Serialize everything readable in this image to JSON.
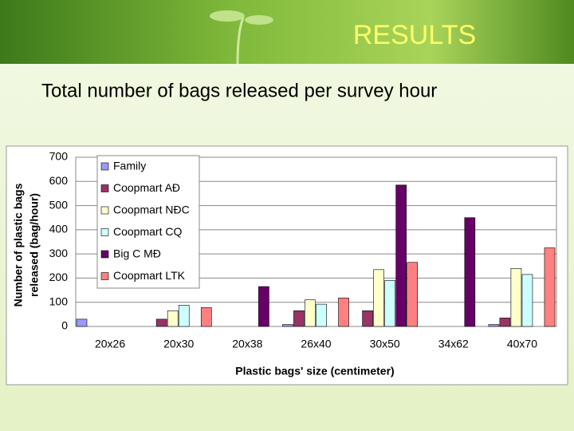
{
  "slide": {
    "title": "RESULTS",
    "subtitle": "Total number of bags released per survey hour"
  },
  "chart_data": {
    "type": "bar",
    "ylabel": [
      "Number of plastic bags",
      "released (bag/hour)"
    ],
    "xlabel": "Plastic bags' size (centimeter)",
    "categories": [
      "20x26",
      "20x30",
      "20x38",
      "26x40",
      "30x50",
      "34x62",
      "40x70"
    ],
    "series": [
      {
        "name": "Family",
        "color": "#9999ff",
        "values": [
          30,
          0,
          0,
          8,
          0,
          0,
          8
        ]
      },
      {
        "name": "Coopmart AĐ",
        "color": "#993366",
        "values": [
          0,
          30,
          0,
          65,
          65,
          0,
          35
        ]
      },
      {
        "name": "Coopmart NĐC",
        "color": "#ffffcc",
        "values": [
          0,
          65,
          0,
          110,
          235,
          0,
          240
        ]
      },
      {
        "name": "Coopmart CQ",
        "color": "#ccffff",
        "values": [
          0,
          88,
          0,
          92,
          190,
          0,
          215
        ]
      },
      {
        "name": "Big C MĐ",
        "color": "#660066",
        "values": [
          0,
          0,
          165,
          0,
          585,
          450,
          0
        ]
      },
      {
        "name": "Coopmart LTK",
        "color": "#ff8080",
        "values": [
          0,
          78,
          0,
          118,
          265,
          0,
          325
        ]
      }
    ],
    "ylim": [
      0,
      700
    ],
    "yticks": [
      0,
      100,
      200,
      300,
      400,
      500,
      600,
      700
    ],
    "grid": true,
    "legend": "top-left"
  }
}
